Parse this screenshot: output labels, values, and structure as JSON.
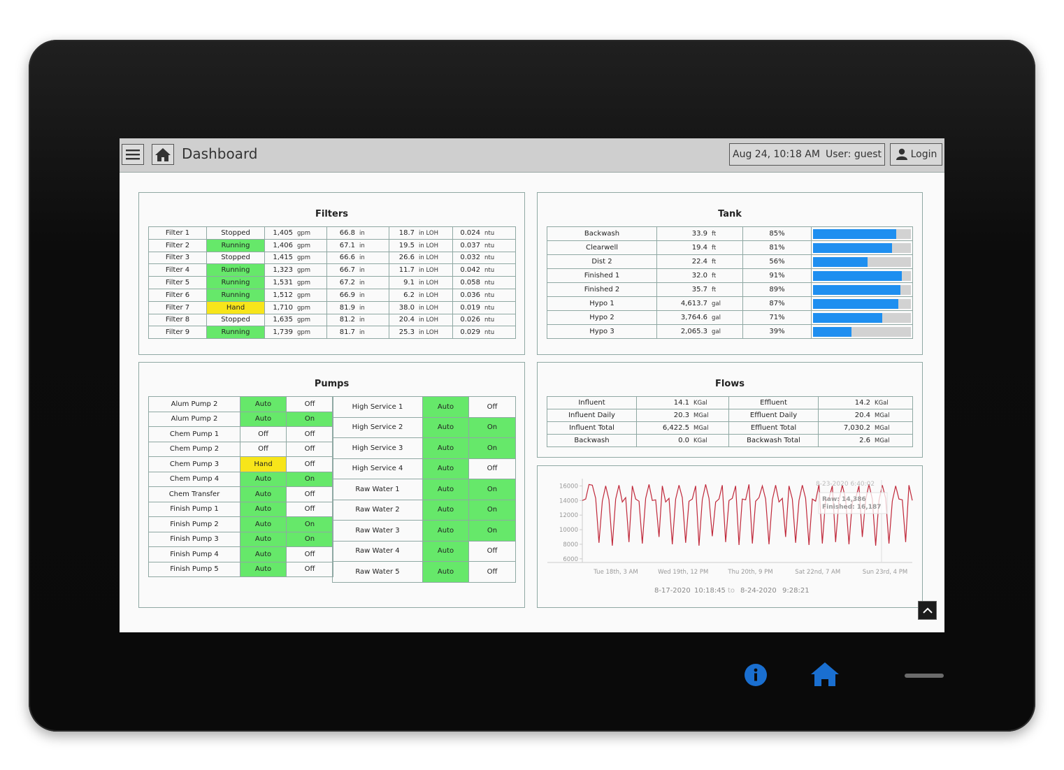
{
  "header": {
    "title": "Dashboard",
    "datetime": "Aug 24, 10:18 AM",
    "user": "User: guest",
    "login_label": "Login"
  },
  "filters": {
    "title": "Filters",
    "rows": [
      {
        "name": "Filter 1",
        "status": "Stopped",
        "flow": "1,405",
        "flow_unit": "gpm",
        "level": "66.8",
        "level_unit": "in",
        "loh": "18.7",
        "loh_unit": "in LOH",
        "turb": "0.024",
        "turb_unit": "ntu"
      },
      {
        "name": "Filter 2",
        "status": "Running",
        "flow": "1,406",
        "flow_unit": "gpm",
        "level": "67.1",
        "level_unit": "in",
        "loh": "19.5",
        "loh_unit": "in LOH",
        "turb": "0.037",
        "turb_unit": "ntu"
      },
      {
        "name": "Filter 3",
        "status": "Stopped",
        "flow": "1,415",
        "flow_unit": "gpm",
        "level": "66.6",
        "level_unit": "in",
        "loh": "26.6",
        "loh_unit": "in LOH",
        "turb": "0.032",
        "turb_unit": "ntu"
      },
      {
        "name": "Filter 4",
        "status": "Running",
        "flow": "1,323",
        "flow_unit": "gpm",
        "level": "66.7",
        "level_unit": "in",
        "loh": "11.7",
        "loh_unit": "in LOH",
        "turb": "0.042",
        "turb_unit": "ntu"
      },
      {
        "name": "Filter 5",
        "status": "Running",
        "flow": "1,531",
        "flow_unit": "gpm",
        "level": "67.2",
        "level_unit": "in",
        "loh": "9.1",
        "loh_unit": "in LOH",
        "turb": "0.058",
        "turb_unit": "ntu"
      },
      {
        "name": "Filter 6",
        "status": "Running",
        "flow": "1,512",
        "flow_unit": "gpm",
        "level": "66.9",
        "level_unit": "in",
        "loh": "6.2",
        "loh_unit": "in LOH",
        "turb": "0.036",
        "turb_unit": "ntu"
      },
      {
        "name": "Filter 7",
        "status": "Hand",
        "flow": "1,710",
        "flow_unit": "gpm",
        "level": "81.9",
        "level_unit": "in",
        "loh": "38.0",
        "loh_unit": "in LOH",
        "turb": "0.019",
        "turb_unit": "ntu"
      },
      {
        "name": "Filter 8",
        "status": "Stopped",
        "flow": "1,635",
        "flow_unit": "gpm",
        "level": "81.2",
        "level_unit": "in",
        "loh": "20.4",
        "loh_unit": "in LOH",
        "turb": "0.026",
        "turb_unit": "ntu"
      },
      {
        "name": "Filter 9",
        "status": "Running",
        "flow": "1,739",
        "flow_unit": "gpm",
        "level": "81.7",
        "level_unit": "in",
        "loh": "25.3",
        "loh_unit": "in LOH",
        "turb": "0.029",
        "turb_unit": "ntu"
      }
    ]
  },
  "tank": {
    "title": "Tank",
    "rows": [
      {
        "name": "Backwash",
        "value": "33.9",
        "unit": "ft",
        "pct": "85%",
        "fill": 0.85
      },
      {
        "name": "Clearwell",
        "value": "19.4",
        "unit": "ft",
        "pct": "81%",
        "fill": 0.81
      },
      {
        "name": "Dist 2",
        "value": "22.4",
        "unit": "ft",
        "pct": "56%",
        "fill": 0.56
      },
      {
        "name": "Finished 1",
        "value": "32.0",
        "unit": "ft",
        "pct": "91%",
        "fill": 0.91
      },
      {
        "name": "Finished 2",
        "value": "35.7",
        "unit": "ft",
        "pct": "89%",
        "fill": 0.89
      },
      {
        "name": "Hypo 1",
        "value": "4,613.7",
        "unit": "gal",
        "pct": "87%",
        "fill": 0.87
      },
      {
        "name": "Hypo 2",
        "value": "3,764.6",
        "unit": "gal",
        "pct": "71%",
        "fill": 0.71
      },
      {
        "name": "Hypo 3",
        "value": "2,065.3",
        "unit": "gal",
        "pct": "39%",
        "fill": 0.39
      }
    ]
  },
  "pumps": {
    "title": "Pumps",
    "left": [
      {
        "name": "Alum Pump 2",
        "mode": "Auto",
        "state": "Off"
      },
      {
        "name": "Alum Pump 2",
        "mode": "Auto",
        "state": "On"
      },
      {
        "name": "Chem Pump 1",
        "mode": "Off",
        "state": "Off"
      },
      {
        "name": "Chem Pump 2",
        "mode": "Off",
        "state": "Off"
      },
      {
        "name": "Chem Pump 3",
        "mode": "Hand",
        "state": "Off"
      },
      {
        "name": "Chem Pump 4",
        "mode": "Auto",
        "state": "On"
      },
      {
        "name": "Chem Transfer",
        "mode": "Auto",
        "state": "Off"
      },
      {
        "name": "Finish Pump 1",
        "mode": "Auto",
        "state": "Off"
      },
      {
        "name": "Finish Pump 2",
        "mode": "Auto",
        "state": "On"
      },
      {
        "name": "Finish Pump 3",
        "mode": "Auto",
        "state": "On"
      },
      {
        "name": "Finish Pump 4",
        "mode": "Auto",
        "state": "Off"
      },
      {
        "name": "Finish Pump 5",
        "mode": "Auto",
        "state": "Off"
      }
    ],
    "right": [
      {
        "name": "High Service 1",
        "mode": "Auto",
        "state": "Off"
      },
      {
        "name": "High Service 2",
        "mode": "Auto",
        "state": "On"
      },
      {
        "name": "High Service 3",
        "mode": "Auto",
        "state": "On"
      },
      {
        "name": "High Service 4",
        "mode": "Auto",
        "state": "Off"
      },
      {
        "name": "Raw Water 1",
        "mode": "Auto",
        "state": "On"
      },
      {
        "name": "Raw Water 2",
        "mode": "Auto",
        "state": "On"
      },
      {
        "name": "Raw Water 3",
        "mode": "Auto",
        "state": "On"
      },
      {
        "name": "Raw Water 4",
        "mode": "Auto",
        "state": "Off"
      },
      {
        "name": "Raw Water 5",
        "mode": "Auto",
        "state": "Off"
      }
    ]
  },
  "flows": {
    "title": "Flows",
    "rows": [
      {
        "l_name": "Influent",
        "l_value": "14.1",
        "l_unit": "KGal",
        "r_name": "Effluent",
        "r_value": "14.2",
        "r_unit": "KGal"
      },
      {
        "l_name": "Influent Daily",
        "l_value": "20.3",
        "l_unit": "MGal",
        "r_name": "Effluent Daily",
        "r_value": "20.4",
        "r_unit": "MGal"
      },
      {
        "l_name": "Influent Total",
        "l_value": "6,422.5",
        "l_unit": "MGal",
        "r_name": "Effluent Total",
        "r_value": "7,030.2",
        "r_unit": "MGal"
      },
      {
        "l_name": "Backwash",
        "l_value": "0.0",
        "l_unit": "KGal",
        "r_name": "Backwash Total",
        "r_value": "2.6",
        "r_unit": "MGal"
      }
    ]
  },
  "trend": {
    "tooltip_time": "8-23-2020 6:40:02",
    "tooltip_raw": "Raw: 14,386",
    "tooltip_finished": "Finished: 16,187",
    "range_start_date": "8-17-2020",
    "range_start_time": "10:18:45",
    "range_to": "to",
    "range_end_date": "8-24-2020",
    "range_end_time": "9:28:21",
    "line_color": "#c0283a"
  },
  "chart_data": {
    "type": "line",
    "title": "",
    "xlabel": "",
    "ylabel": "",
    "ylim": [
      5500,
      17000
    ],
    "y_ticks": [
      "16000",
      "14000",
      "12000",
      "10000",
      "8000",
      "6000"
    ],
    "x_ticks": [
      "Tue 18th, 3 AM",
      "Wed 19th, 12 PM",
      "Thu 20th, 9 PM",
      "Sat 22nd, 7 AM",
      "Sun 23rd, 4 PM"
    ],
    "grid": false,
    "series": [
      {
        "values": [
          14000,
          14200,
          16200,
          16100,
          14300,
          8200,
          13900,
          16000,
          14100,
          7800,
          14200,
          16100,
          13800,
          14400,
          8300,
          16000,
          14200,
          13900,
          8100,
          14300,
          16200,
          14000,
          14100,
          9000,
          16000,
          13800,
          14300,
          8000,
          14200,
          16100,
          14400,
          8200,
          13900,
          14200,
          16000,
          7800,
          14100,
          16200,
          14300,
          9100,
          13800,
          14200,
          16100,
          8300,
          14000,
          14300,
          16000,
          7900,
          14200,
          14100,
          16200,
          8100,
          13900,
          14400,
          16000,
          14200,
          8000,
          14100,
          16100,
          13800,
          14300,
          9000,
          16000,
          14200,
          8200,
          14000,
          16100,
          14300,
          7900,
          14200,
          13900,
          16200,
          8100,
          14100,
          14300,
          16000,
          8300,
          14000,
          16100,
          14200,
          8000,
          13800,
          14300,
          16000,
          9000,
          14100,
          16200,
          14200,
          7800,
          14000,
          16100,
          14300,
          8100,
          13900,
          16000,
          14200,
          14100,
          8300,
          16100,
          14000
        ]
      }
    ]
  }
}
